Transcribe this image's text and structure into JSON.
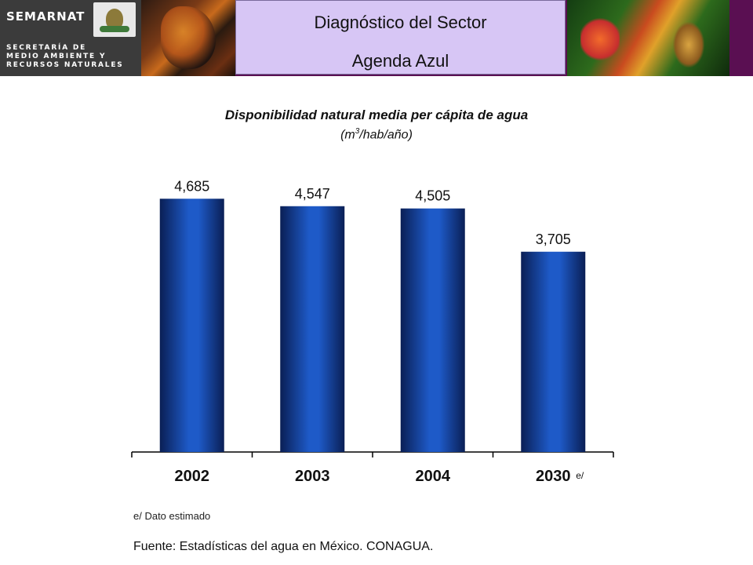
{
  "header": {
    "brand": "SEMARNAT",
    "ministry": "SECRETARÍA DE\nMEDIO AMBIENTE Y\nRECURSOS NATURALES",
    "title_line1": "Diagnóstico del Sector",
    "title_line2": "Agenda Azul"
  },
  "chart_data": {
    "type": "bar",
    "title": "Disponibilidad natural media per cápita de agua",
    "subtitle_prefix": "(m",
    "subtitle_sup": "3",
    "subtitle_suffix": "/hab/año)",
    "categories": [
      "2002",
      "2003",
      "2004",
      "2030"
    ],
    "category_suffixes": [
      "",
      "",
      "",
      "e/"
    ],
    "values": [
      4685,
      4547,
      4505,
      3705
    ],
    "value_labels": [
      "4,685",
      "4,547",
      "4,505",
      "3,705"
    ],
    "ylim": [
      0,
      5400
    ],
    "grid": false,
    "bar_color": "#1a4ba8"
  },
  "footer": {
    "note": "e/ Dato estimado",
    "source": "Fuente: Estadísticas del agua en México. CONAGUA."
  }
}
